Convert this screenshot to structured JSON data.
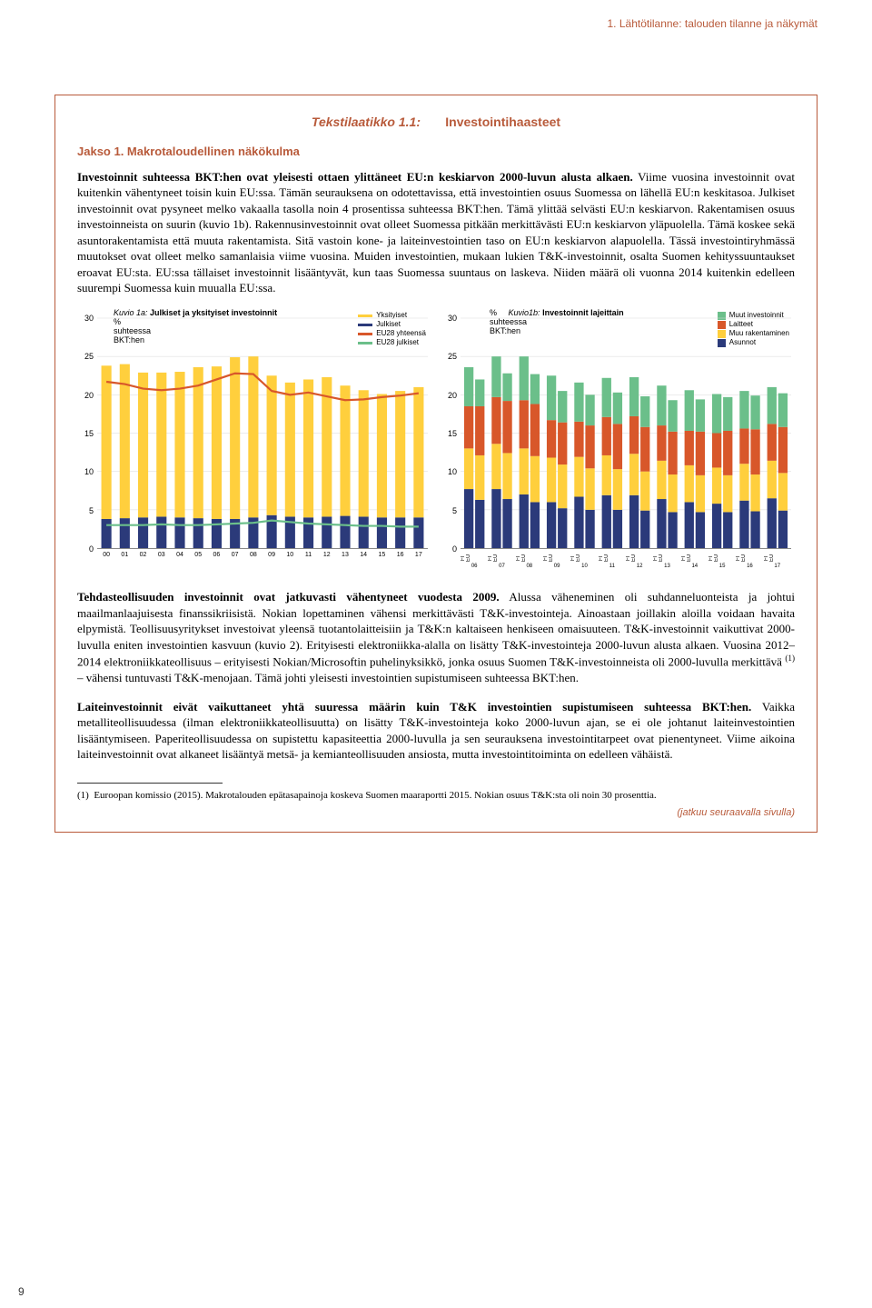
{
  "header": {
    "breadcrumb": "1. Lähtötilanne: talouden tilanne ja näkymät"
  },
  "box": {
    "title_prefix": "Tekstilaatikko 1.1:",
    "title": "Investointihaasteet",
    "section_label": "Jakso 1. Makrotaloudellinen näkökulma",
    "paragraph_lead": "Investoinnit suhteessa BKT:hen ovat yleisesti ottaen ylittäneet EU:n keskiarvon 2000-luvun alusta alkaen.",
    "paragraph_rest": " Viime vuosina investoinnit ovat kuitenkin vähentyneet toisin kuin EU:ssa. Tämän seurauksena on odotettavissa, että investointien osuus Suomessa on lähellä EU:n keskitasoa. Julkiset investoinnit ovat pysyneet melko vakaalla tasolla noin 4 prosentissa suhteessa BKT:hen. Tämä ylittää selvästi EU:n keskiarvon. Rakentamisen osuus investoinneista on suurin (kuvio 1b). Rakennusinvestoinnit ovat olleet Suomessa pitkään merkittävästi EU:n keskiarvon yläpuolella. Tämä koskee sekä asuntorakentamista että muuta rakentamista. Sitä vastoin kone- ja laiteinvestointien taso on EU:n keskiarvon alapuolella. Tässä investointiryhmässä muutokset ovat olleet melko samanlaisia viime vuosina. Muiden investointien, mukaan lukien T&K-investoinnit, osalta Suomen kehityssuuntaukset eroavat EU:sta. EU:ssa tällaiset investoinnit lisääntyvät, kun taas Suomessa suuntaus on laskeva. Niiden määrä oli vuonna 2014 kuitenkin edelleen suurempi Suomessa kuin muualla EU:ssa.",
    "continue_label": "(jatkuu seuraavalla sivulla)"
  },
  "chart_a": {
    "title_italic": "Kuvio 1a:",
    "title_bold": "Julkiset ja yksityiset investoinnit",
    "subtitle1": "%",
    "subtitle2": "suhteessa",
    "subtitle3": "BKT:hen",
    "ylim": [
      0,
      30
    ],
    "ytick_step": 5,
    "legend": [
      {
        "label": "Yksityiset",
        "color": "#ffcf3d",
        "type": "sw"
      },
      {
        "label": "Julkiset",
        "color": "#2b3a7a",
        "type": "sw"
      },
      {
        "label": "EU28 yhteensä",
        "color": "#d8572a",
        "type": "sw"
      },
      {
        "label": "EU28 julkiset",
        "color": "#6bbf8a",
        "type": "sw"
      }
    ],
    "years": [
      "00",
      "01",
      "02",
      "03",
      "04",
      "05",
      "06",
      "07",
      "08",
      "09",
      "10",
      "11",
      "12",
      "13",
      "14",
      "15",
      "16",
      "17"
    ],
    "series_public": [
      3.8,
      3.9,
      4.0,
      4.1,
      4.0,
      3.9,
      3.8,
      3.8,
      4.0,
      4.3,
      4.1,
      4.0,
      4.1,
      4.2,
      4.1,
      4.0,
      4.0,
      4.0
    ],
    "series_private": [
      20.0,
      20.1,
      18.9,
      18.8,
      19.0,
      19.7,
      19.9,
      21.1,
      21.0,
      18.2,
      17.5,
      18.0,
      18.2,
      17.0,
      16.5,
      16.1,
      16.5,
      17.0
    ],
    "series_eu_total": [
      21.7,
      21.4,
      20.8,
      20.6,
      20.8,
      21.2,
      22.0,
      22.8,
      22.7,
      20.5,
      20.0,
      20.3,
      19.8,
      19.3,
      19.4,
      19.7,
      19.9,
      20.2
    ],
    "series_eu_pub": [
      3.0,
      3.0,
      3.0,
      3.1,
      3.0,
      3.0,
      3.1,
      3.2,
      3.3,
      3.6,
      3.4,
      3.2,
      3.1,
      3.0,
      2.9,
      2.9,
      2.8,
      2.8
    ],
    "bar_color_bottom": "#2b3a7a",
    "bar_color_top": "#ffcf3d",
    "line_color_total": "#d8572a",
    "line_color_pub": "#6bbf8a",
    "grid_color": "#d9d9d9",
    "background": "#ffffff"
  },
  "chart_b": {
    "title_italic": "Kuvio1b:",
    "title_bold": "Investoinnit lajeittain",
    "subtitle1": "%",
    "subtitle2": "suhteessa",
    "subtitle3": "BKT:hen",
    "ylim": [
      0,
      30
    ],
    "ytick_step": 5,
    "legend": [
      {
        "label": "Muut investoinnit",
        "color": "#6bbf8a",
        "type": "sq"
      },
      {
        "label": "Laitteet",
        "color": "#d8572a",
        "type": "sq"
      },
      {
        "label": "Muu rakentaminen",
        "color": "#ffcf3d",
        "type": "sq"
      },
      {
        "label": "Asunnot",
        "color": "#2b3a7a",
        "type": "sq"
      }
    ],
    "years": [
      "06",
      "07",
      "08",
      "09",
      "10",
      "11",
      "12",
      "13",
      "14",
      "15",
      "16",
      "17"
    ],
    "pair_labels": [
      "FI",
      "EU"
    ],
    "fi": {
      "housing": [
        7.7,
        7.7,
        7.0,
        6.0,
        6.7,
        6.9,
        6.9,
        6.4,
        6.0,
        5.8,
        6.2,
        6.5
      ],
      "other_con": [
        5.3,
        5.9,
        6.0,
        5.8,
        5.2,
        5.2,
        5.4,
        5.0,
        4.8,
        4.7,
        4.8,
        4.9
      ],
      "equip": [
        5.5,
        6.1,
        6.3,
        4.9,
        4.6,
        5.0,
        4.9,
        4.6,
        4.5,
        4.5,
        4.6,
        4.8
      ],
      "other_inv": [
        5.1,
        5.3,
        5.7,
        5.8,
        5.1,
        5.1,
        5.1,
        5.2,
        5.3,
        5.1,
        4.9,
        4.8
      ]
    },
    "eu": {
      "housing": [
        6.3,
        6.4,
        6.0,
        5.2,
        5.0,
        5.0,
        4.9,
        4.7,
        4.7,
        4.7,
        4.8,
        4.9
      ],
      "other_con": [
        5.8,
        6.0,
        6.0,
        5.7,
        5.4,
        5.3,
        5.1,
        4.9,
        4.8,
        4.8,
        4.8,
        4.9
      ],
      "equip": [
        6.4,
        6.8,
        6.8,
        5.5,
        5.6,
        5.9,
        5.8,
        5.6,
        5.7,
        5.8,
        5.9,
        6.0
      ],
      "other_inv": [
        3.5,
        3.6,
        3.9,
        4.1,
        4.0,
        4.1,
        4.0,
        4.1,
        4.2,
        4.4,
        4.4,
        4.4
      ]
    },
    "grid_color": "#d9d9d9"
  },
  "after": {
    "p1_lead": "Tehdasteollisuuden investoinnit ovat jatkuvasti vähentyneet vuodesta 2009.",
    "p1_rest": " Alussa väheneminen oli suhdanneluonteista ja johtui maailmanlaajuisesta finanssikriisistä. Nokian lopettaminen vähensi merkittävästi T&K-investointeja. Ainoastaan joillakin aloilla voidaan havaita elpymistä. Teollisuusyritykset investoivat yleensä tuotantolaitteisiin ja T&K:n kaltaiseen henkiseen omaisuuteen. T&K-investoinnit vaikuttivat 2000-luvulla eniten investointien kasvuun (kuvio 2). Erityisesti elektroniikka-alalla on lisätty T&K-investointeja 2000-luvun alusta alkaen. Vuosina 2012–2014 elektroniikkateollisuus – erityisesti Nokian/Microsoftin puhelinyksikkö, jonka osuus Suomen T&K-investoinneista oli 2000-luvulla merkittävä ",
    "p1_sup": "(1)",
    "p1_tail": " – vähensi tuntuvasti T&K-menojaan. Tämä johti yleisesti investointien supistumiseen suhteessa BKT:hen.",
    "p2_lead": "Laiteinvestoinnit eivät vaikuttaneet yhtä suuressa määrin kuin T&K investointien supistumiseen suhteessa BKT:hen.",
    "p2_rest": " Vaikka metalliteollisuudessa (ilman elektroniikkateollisuutta) on lisätty T&K-investointeja koko 2000-luvun ajan, se ei ole johtanut laiteinvestointien lisääntymiseen. Paperiteollisuudessa on supistettu kapasiteettia 2000-luvulla ja sen seurauksena investointitarpeet ovat pienentyneet. Viime aikoina laiteinvestoinnit ovat alkaneet lisääntyä metsä- ja kemianteollisuuden ansiosta, mutta investointitoiminta on edelleen vähäistä."
  },
  "footnote": {
    "marker": "(1)",
    "text": "Euroopan komissio (2015). Makrotalouden epätasapainoja koskeva Suomen maaraportti 2015. Nokian osuus T&K:sta oli noin 30 prosenttia."
  },
  "page_number": "9"
}
